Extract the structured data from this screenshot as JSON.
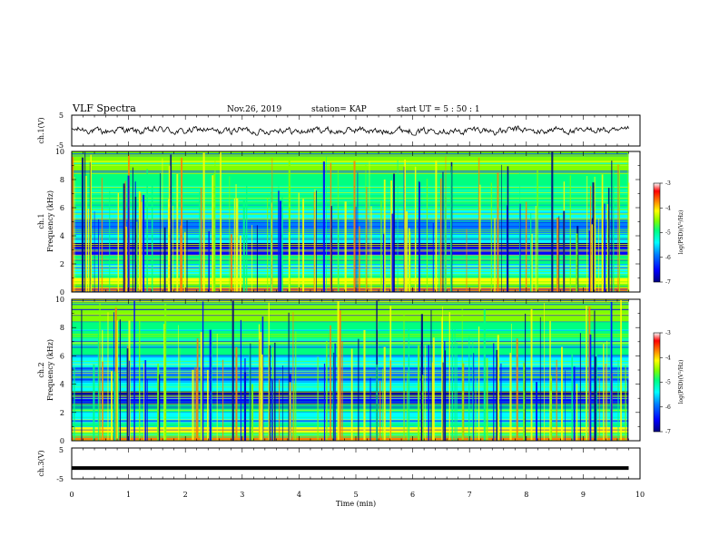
{
  "header": {
    "title": "VLF Spectra",
    "date": "Nov.26, 2019",
    "station": "station= KAP",
    "start_ut": "start  UT =   5  : 50 : 1"
  },
  "colors": {
    "spectrogram_palette": [
      "#000080",
      "#0000ff",
      "#0080ff",
      "#00ffff",
      "#00ff80",
      "#80ff00",
      "#ffff00",
      "#ff8000",
      "#ff0000",
      "#ffffff"
    ],
    "waveform": "#000000"
  },
  "chart_data": [
    {
      "type": "line",
      "name": "ch1-waveform",
      "ylabel": "ch.1(V)",
      "xlim": [
        0,
        10
      ],
      "ylim": [
        -5,
        5
      ],
      "yticks": [
        "5",
        "-5"
      ],
      "signal_range": [
        -1.5,
        1.5
      ],
      "data_extent_min": [
        0,
        9.8
      ]
    },
    {
      "type": "heatmap",
      "name": "ch1-spectrogram",
      "ylabel_top": "ch.1",
      "ylabel": "Frequency  (kHz)",
      "xlim": [
        0,
        10
      ],
      "ylim": [
        0,
        10
      ],
      "yticks": [
        "0",
        "2",
        "4",
        "6",
        "8",
        "10"
      ],
      "data_extent_min": [
        0,
        9.8
      ],
      "colorbar": {
        "label": "log(PSD)(V²/Hz)",
        "range": [
          -7,
          -3
        ],
        "ticks": [
          "-3",
          "-4",
          "-5",
          "-6",
          "-7"
        ]
      }
    },
    {
      "type": "heatmap",
      "name": "ch2-spectrogram",
      "ylabel_top": "ch.2",
      "ylabel": "Frequency  (kHz)",
      "xlim": [
        0,
        10
      ],
      "ylim": [
        0,
        10
      ],
      "yticks": [
        "0",
        "2",
        "4",
        "6",
        "8",
        "10"
      ],
      "data_extent_min": [
        0,
        9.8
      ],
      "colorbar": {
        "label": "log(PSD)(V²/Hz)",
        "range": [
          -7,
          -3
        ],
        "ticks": [
          "-3",
          "-4",
          "-5",
          "-6",
          "-7"
        ]
      }
    },
    {
      "type": "line",
      "name": "ch3-waveform",
      "ylabel": "ch.3(V)",
      "xlim": [
        0,
        10
      ],
      "ylim": [
        -5,
        5
      ],
      "yticks": [
        "5",
        "-5"
      ],
      "constant_value": -1.5,
      "data_extent_min": [
        0,
        9.8
      ],
      "xlabel": "Time  (min)",
      "xticks": [
        "0",
        "1",
        "2",
        "3",
        "4",
        "5",
        "6",
        "7",
        "8",
        "9",
        "10"
      ]
    }
  ]
}
